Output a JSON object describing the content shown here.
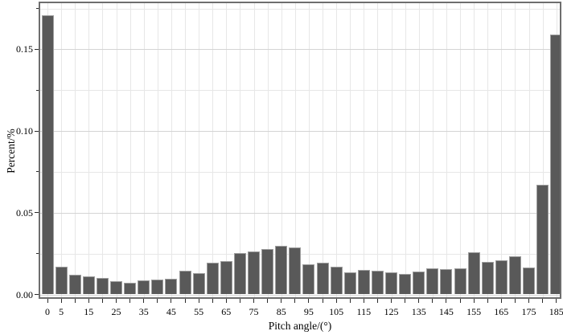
{
  "chart_data": {
    "type": "bar",
    "subtype": "histogram",
    "title": "",
    "xlabel": "Pitch angle/(°)",
    "ylabel": "Percent/%",
    "bin_width": 5,
    "categories": [
      0,
      5,
      10,
      15,
      20,
      25,
      30,
      35,
      40,
      45,
      50,
      55,
      60,
      65,
      70,
      75,
      80,
      85,
      90,
      95,
      100,
      105,
      110,
      115,
      120,
      125,
      130,
      135,
      140,
      145,
      150,
      155,
      160,
      165,
      170,
      175,
      180,
      185
    ],
    "values": [
      0.171,
      0.017,
      0.012,
      0.011,
      0.01,
      0.008,
      0.007,
      0.0085,
      0.009,
      0.0095,
      0.0145,
      0.013,
      0.0195,
      0.0205,
      0.0255,
      0.0265,
      0.028,
      0.0295,
      0.029,
      0.0185,
      0.0195,
      0.017,
      0.0135,
      0.015,
      0.0145,
      0.0135,
      0.0125,
      0.014,
      0.016,
      0.0155,
      0.016,
      0.026,
      0.02,
      0.021,
      0.0235,
      0.0165,
      0.067,
      0.159
    ],
    "x_tick_values_all": [
      0,
      5,
      10,
      15,
      20,
      25,
      30,
      35,
      40,
      45,
      50,
      55,
      60,
      65,
      70,
      75,
      80,
      85,
      90,
      95,
      100,
      105,
      110,
      115,
      120,
      125,
      130,
      135,
      140,
      145,
      150,
      155,
      160,
      165,
      170,
      175,
      180,
      185
    ],
    "x_labeled_tick_values": [
      0,
      5,
      15,
      25,
      35,
      45,
      55,
      65,
      75,
      85,
      95,
      105,
      115,
      125,
      135,
      145,
      155,
      165,
      175,
      185
    ],
    "x_tick_labels": [
      "0",
      "5",
      "15",
      "25",
      "35",
      "45",
      "55",
      "65",
      "75",
      "85",
      "95",
      "105",
      "115",
      "125",
      "135",
      "145",
      "155",
      "165",
      "175",
      "185"
    ],
    "y_tick_values": [
      0.0,
      0.05,
      0.1,
      0.15
    ],
    "y_tick_labels": [
      "0.00",
      "0.05",
      "0.10",
      "0.15"
    ],
    "y_minor_tick_values": [
      0.025,
      0.075,
      0.125,
      0.175
    ],
    "xlim": [
      -3,
      186.5
    ],
    "ylim": [
      -0.002,
      0.179
    ],
    "grid": true,
    "legend_position": "none",
    "colors": {
      "bar_fill": "#595959",
      "bar_border": "#9e9e9e",
      "panel_border": "#6e6e6e",
      "grid_major": "#d4d4d4",
      "grid_minor": "#e7e7e7",
      "text": "#000000",
      "background": "#ffffff"
    }
  }
}
